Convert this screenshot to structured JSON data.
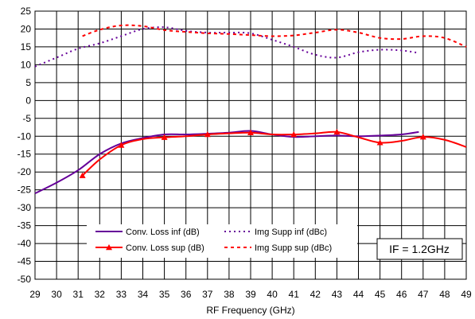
{
  "chart_data": {
    "type": "line",
    "xlabel": "RF Frequency (GHz)",
    "ylabel": "",
    "xlim": [
      29,
      49
    ],
    "ylim": [
      -50,
      25
    ],
    "xticks": [
      29,
      30,
      31,
      32,
      33,
      34,
      35,
      36,
      37,
      38,
      39,
      40,
      41,
      42,
      43,
      44,
      45,
      46,
      47,
      48,
      49
    ],
    "yticks": [
      25,
      20,
      15,
      10,
      5,
      0,
      -5,
      -10,
      -15,
      -20,
      -25,
      -30,
      -35,
      -40,
      -45,
      -50
    ],
    "grid": true,
    "legend_placement": "bottom-center",
    "annotation": "IF = 1.2GHz",
    "colors": {
      "purple": "#660099",
      "red": "#ff0000"
    },
    "series": [
      {
        "name": "Conv. Loss inf (dB)",
        "color": "#660099",
        "style": "solid",
        "marker": "none",
        "x": [
          29,
          30,
          31,
          32,
          33,
          34,
          35,
          36,
          37,
          38,
          39,
          40,
          41,
          42,
          43,
          44,
          45,
          46,
          46.8
        ],
        "y": [
          -26,
          -23,
          -19.5,
          -15,
          -12,
          -10.5,
          -9.5,
          -9.5,
          -9.3,
          -9,
          -8.5,
          -9.5,
          -10.2,
          -10,
          -9.8,
          -10,
          -9.8,
          -9.5,
          -8.8
        ]
      },
      {
        "name": "Conv. Loss sup (dB)",
        "color": "#ff0000",
        "style": "solid",
        "marker": "triangle",
        "x": [
          31.2,
          32,
          33,
          34,
          35,
          36,
          37,
          38,
          39,
          40,
          41,
          42,
          43,
          44,
          45,
          46,
          47,
          48,
          49
        ],
        "y": [
          -21,
          -16.5,
          -12.5,
          -10.8,
          -10.3,
          -10,
          -9.5,
          -9.2,
          -9,
          -9.5,
          -9.5,
          -9.2,
          -8.8,
          -10.3,
          -11.8,
          -11.3,
          -10.2,
          -11,
          -13
        ]
      },
      {
        "name": "Img Supp inf (dBc)",
        "color": "#660099",
        "style": "dotted",
        "marker": "none",
        "x": [
          29,
          30,
          31,
          32,
          33,
          34,
          35,
          36,
          37,
          38,
          39,
          40,
          41,
          42,
          43,
          44,
          45,
          46,
          46.8
        ],
        "y": [
          9.5,
          12,
          14.5,
          16,
          18,
          20,
          20.5,
          19.5,
          19,
          19,
          18.8,
          17,
          15,
          12.8,
          12,
          13.5,
          14.2,
          14,
          13.3
        ]
      },
      {
        "name": "Img Supp sup (dBc)",
        "color": "#ff0000",
        "style": "dashed",
        "marker": "none",
        "x": [
          31.2,
          32,
          33,
          34,
          35,
          36,
          37,
          38,
          39,
          40,
          41,
          42,
          43,
          44,
          45,
          46,
          47,
          48,
          49
        ],
        "y": [
          18,
          19.8,
          21,
          20.8,
          19.7,
          19.2,
          18.8,
          18.6,
          18.3,
          18,
          18.2,
          19,
          19.8,
          19,
          17.5,
          17.2,
          18,
          17.5,
          15
        ]
      }
    ]
  }
}
